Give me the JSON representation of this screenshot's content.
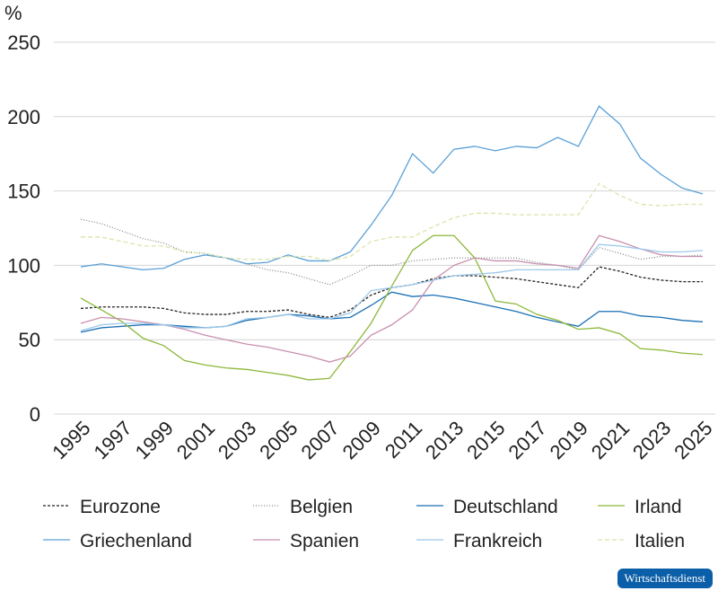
{
  "chart_data": {
    "type": "line",
    "ylabel": "%",
    "ylim": [
      0,
      250
    ],
    "yticks": [
      0,
      50,
      100,
      150,
      200,
      250
    ],
    "grid": true,
    "legend_position": "bottom",
    "x": [
      1995,
      1996,
      1997,
      1998,
      1999,
      2000,
      2001,
      2002,
      2003,
      2004,
      2005,
      2006,
      2007,
      2008,
      2009,
      2010,
      2011,
      2012,
      2013,
      2014,
      2015,
      2016,
      2017,
      2018,
      2019,
      2020,
      2021,
      2022,
      2023,
      2024,
      2025
    ],
    "xtick_labels": [
      "1995",
      "1997",
      "1999",
      "2001",
      "2003",
      "2005",
      "2007",
      "2009",
      "2011",
      "2013",
      "2015",
      "2017",
      "2019",
      "2021",
      "2023",
      "2025"
    ],
    "series": [
      {
        "name": "Eurozone",
        "color": "#222222",
        "dash": "3,2",
        "values": [
          71,
          72,
          72,
          72,
          71,
          68,
          67,
          67,
          69,
          69,
          70,
          67,
          65,
          70,
          80,
          85,
          87,
          91,
          93,
          93,
          92,
          91,
          89,
          87,
          85,
          99,
          96,
          92,
          90,
          89,
          89
        ]
      },
      {
        "name": "Belgien",
        "color": "#888888",
        "dash": "1,2",
        "values": [
          131,
          128,
          123,
          118,
          115,
          109,
          108,
          105,
          101,
          97,
          95,
          91,
          87,
          93,
          100,
          100,
          103,
          104,
          105,
          105,
          105,
          105,
          102,
          100,
          97,
          112,
          108,
          104,
          106,
          106,
          107
        ]
      },
      {
        "name": "Deutschland",
        "color": "#1a6fb5",
        "dash": "",
        "values": [
          55,
          58,
          59,
          60,
          60,
          59,
          58,
          59,
          63,
          65,
          67,
          66,
          64,
          65,
          73,
          82,
          79,
          80,
          78,
          75,
          72,
          69,
          65,
          62,
          59,
          69,
          69,
          66,
          65,
          63,
          62
        ]
      },
      {
        "name": "Irland",
        "color": "#8db83a",
        "dash": "",
        "values": [
          78,
          70,
          62,
          51,
          46,
          36,
          33,
          31,
          30,
          28,
          26,
          23,
          24,
          42,
          61,
          86,
          110,
          120,
          120,
          105,
          76,
          74,
          67,
          63,
          57,
          58,
          54,
          44,
          43,
          41,
          40
        ]
      },
      {
        "name": "Griechenland",
        "color": "#5aa0d8",
        "dash": "",
        "values": [
          99,
          101,
          99,
          97,
          98,
          104,
          107,
          105,
          101,
          102,
          107,
          103,
          103,
          109,
          127,
          147,
          175,
          162,
          178,
          180,
          177,
          180,
          179,
          186,
          180,
          207,
          195,
          172,
          161,
          152,
          148
        ]
      },
      {
        "name": "Spanien",
        "color": "#c890b0",
        "dash": "",
        "values": [
          61,
          65,
          64,
          62,
          60,
          57,
          53,
          50,
          47,
          45,
          42,
          39,
          35,
          39,
          53,
          60,
          70,
          90,
          100,
          105,
          103,
          103,
          101,
          100,
          98,
          120,
          116,
          111,
          107,
          106,
          106
        ]
      },
      {
        "name": "Frankreich",
        "color": "#9cc8ea",
        "dash": "",
        "values": [
          56,
          60,
          61,
          61,
          60,
          58,
          58,
          59,
          64,
          65,
          67,
          64,
          64,
          68,
          83,
          85,
          87,
          90,
          93,
          94,
          95,
          97,
          97,
          97,
          97,
          114,
          113,
          111,
          109,
          109,
          110
        ]
      },
      {
        "name": "Italien",
        "color": "#d8e6a8",
        "dash": "5,3",
        "values": [
          119,
          119,
          116,
          113,
          113,
          109,
          108,
          105,
          104,
          104,
          106,
          106,
          103,
          106,
          116,
          119,
          119,
          126,
          132,
          135,
          135,
          134,
          134,
          134,
          134,
          155,
          147,
          141,
          140,
          141,
          141
        ]
      }
    ]
  },
  "source_badge": "Wirtschaftsdienst"
}
